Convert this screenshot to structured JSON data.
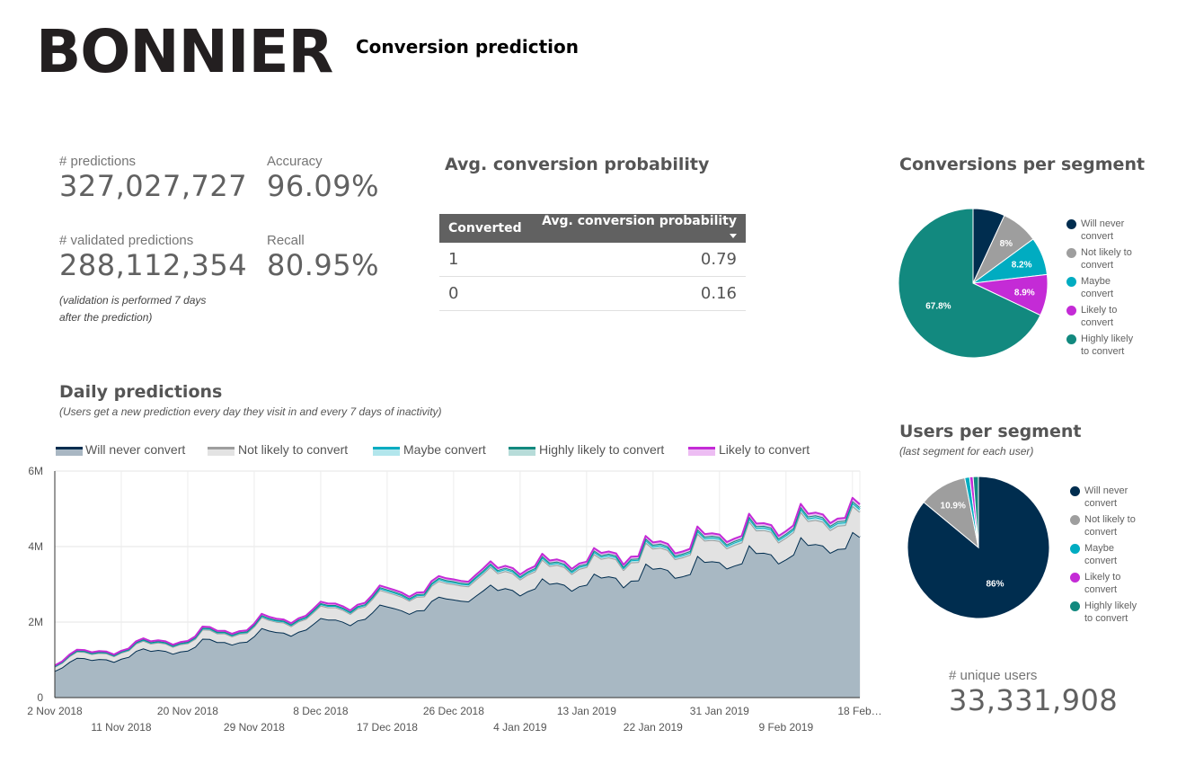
{
  "header": {
    "logo_text": "BONNIER",
    "title": "Conversion prediction"
  },
  "kpis": {
    "predictions": {
      "label": "# predictions",
      "value": "327,027,727"
    },
    "accuracy": {
      "label": "Accuracy",
      "value": "96.09%"
    },
    "validated": {
      "label": "# validated predictions",
      "value": "288,112,354"
    },
    "recall": {
      "label": "Recall",
      "value": "80.95%"
    },
    "validation_note_line1": "(validation is performed 7 days",
    "validation_note_line2": "after the prediction)",
    "unique_users": {
      "label": "# unique users",
      "value": "33,331,908"
    }
  },
  "avg_table": {
    "title": "Avg. conversion probability",
    "col1": "Converted",
    "col2": "Avg. conversion probability",
    "sort_icon": "sort-desc-icon",
    "rows": [
      {
        "converted": "1",
        "prob": "0.79"
      },
      {
        "converted": "0",
        "prob": "0.16"
      }
    ]
  },
  "colors": {
    "will_never": "#002d4f",
    "not_likely": "#9e9e9e",
    "maybe": "#00acc1",
    "likely": "#c42bd6",
    "highly_likely": "#12897f"
  },
  "chart_data": [
    {
      "type": "area",
      "title": "Daily predictions",
      "subtitle": "(Users get a new prediction every day they visit in and every 7 days of inactivity)",
      "stacked": true,
      "ylim": [
        0,
        6000000
      ],
      "yticks": [
        "0",
        "2M",
        "4M",
        "6M"
      ],
      "xticks_row1": [
        "2 Nov 2018",
        "20 Nov 2018",
        "8 Dec 2018",
        "26 Dec 2018",
        "13 Jan 2019",
        "31 Jan 2019",
        "18 Feb…"
      ],
      "xticks_row2": [
        "11 Nov 2018",
        "29 Nov 2018",
        "17 Dec 2018",
        "4 Jan 2019",
        "22 Jan 2019",
        "9 Feb 2019"
      ],
      "x_start": "2018-11-02",
      "x_end": "2019-02-18",
      "legend_position": "top",
      "grid": true,
      "totals": [
        850000,
        960000,
        1140000,
        1270000,
        1260000,
        1200000,
        1230000,
        1220000,
        1140000,
        1240000,
        1300000,
        1490000,
        1570000,
        1490000,
        1520000,
        1490000,
        1400000,
        1470000,
        1500000,
        1620000,
        1880000,
        1870000,
        1770000,
        1770000,
        1690000,
        1760000,
        1780000,
        1960000,
        2220000,
        2140000,
        2090000,
        2070000,
        1970000,
        2100000,
        2170000,
        2350000,
        2540000,
        2490000,
        2490000,
        2420000,
        2310000,
        2460000,
        2510000,
        2720000,
        2970000,
        2910000,
        2850000,
        2780000,
        2670000,
        2780000,
        2790000,
        3080000,
        3220000,
        3160000,
        3130000,
        3090000,
        3070000,
        3250000,
        3420000,
        3610000,
        3430000,
        3490000,
        3430000,
        3260000,
        3390000,
        3480000,
        3810000,
        3630000,
        3660000,
        3600000,
        3410000,
        3550000,
        3600000,
        3960000,
        3830000,
        3870000,
        3820000,
        3520000,
        3730000,
        3740000,
        4280000,
        4110000,
        4140000,
        4070000,
        3820000,
        3870000,
        3940000,
        4530000,
        4330000,
        4350000,
        4320000,
        4120000,
        4210000,
        4280000,
        4870000,
        4610000,
        4620000,
        4570000,
        4280000,
        4410000,
        4560000,
        5130000,
        4870000,
        4900000,
        4850000,
        4620000,
        4740000,
        4760000,
        5290000,
        5120000
      ],
      "shares": {
        "will_never": 0.83,
        "not_likely": 0.13,
        "maybe": 0.015,
        "highly_likely": 0.01,
        "likely": 0.015
      },
      "series": [
        {
          "name": "Will never convert",
          "key": "will_never"
        },
        {
          "name": "Not likely to convert",
          "key": "not_likely"
        },
        {
          "name": "Maybe convert",
          "key": "maybe"
        },
        {
          "name": "Highly likely to convert",
          "key": "highly_likely"
        },
        {
          "name": "Likely to convert",
          "key": "likely"
        }
      ]
    },
    {
      "type": "pie",
      "title": "Conversions per segment",
      "slices": [
        {
          "name": "Will never convert",
          "value": 6.9,
          "label": "",
          "color_key": "will_never"
        },
        {
          "name": "Not likely to convert",
          "value": 8.0,
          "label": "8%",
          "color_key": "not_likely"
        },
        {
          "name": "Maybe convert",
          "value": 8.2,
          "label": "8.2%",
          "color_key": "maybe"
        },
        {
          "name": "Likely to convert",
          "value": 8.9,
          "label": "8.9%",
          "color_key": "likely"
        },
        {
          "name": "Highly likely to convert",
          "value": 67.8,
          "label": "67.8%",
          "color_key": "highly_likely"
        }
      ],
      "legend": [
        "Will never convert",
        "Not likely to convert",
        "Maybe convert",
        "Likely to convert",
        "Highly likely to convert"
      ]
    },
    {
      "type": "pie",
      "title": "Users per segment",
      "subtitle": "(last segment for each user)",
      "slices": [
        {
          "name": "Will never convert",
          "value": 86.0,
          "label": "86%",
          "color_key": "will_never"
        },
        {
          "name": "Not likely to convert",
          "value": 10.9,
          "label": "10.9%",
          "color_key": "not_likely"
        },
        {
          "name": "Maybe convert",
          "value": 1.1,
          "label": "",
          "color_key": "maybe"
        },
        {
          "name": "Likely to convert",
          "value": 0.8,
          "label": "",
          "color_key": "likely"
        },
        {
          "name": "Highly likely to convert",
          "value": 1.2,
          "label": "",
          "color_key": "highly_likely"
        }
      ],
      "legend": [
        "Will never convert",
        "Not likely to convert",
        "Maybe convert",
        "Likely to convert",
        "Highly likely to convert"
      ]
    }
  ],
  "legend_labels": {
    "will_never": [
      "Will never",
      "convert"
    ],
    "not_likely": [
      "Not likely to",
      "convert"
    ],
    "maybe": [
      "Maybe",
      "convert"
    ],
    "likely": [
      "Likely to",
      "convert"
    ],
    "highly_likely": [
      "Highly likely",
      "to convert"
    ]
  }
}
